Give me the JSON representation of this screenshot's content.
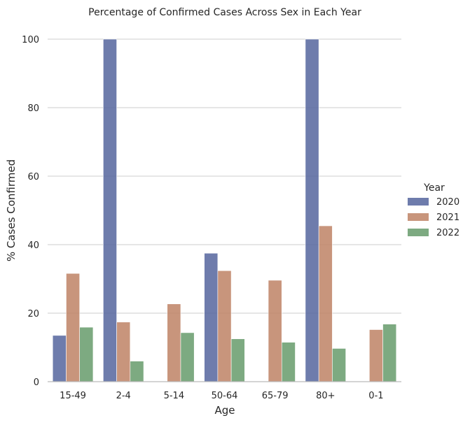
{
  "chart_data": {
    "type": "bar",
    "title": "Percentage of Confirmed Cases Across Sex in Each Year",
    "xlabel": "Age",
    "ylabel": "% Cases Confirmed",
    "categories": [
      "15-49",
      "2-4",
      "5-14",
      "50-64",
      "65-79",
      "80+",
      "0-1"
    ],
    "series": [
      {
        "name": "2020",
        "color": "#5a6aa0",
        "values": [
          13.5,
          100,
          null,
          37.5,
          null,
          100,
          null
        ]
      },
      {
        "name": "2021",
        "color": "#c0866a",
        "values": [
          31.6,
          17.4,
          22.7,
          32.4,
          29.6,
          45.5,
          15.2
        ]
      },
      {
        "name": "2022",
        "color": "#6b9e70",
        "values": [
          15.9,
          6,
          14.3,
          12.5,
          11.5,
          9.7,
          16.8
        ]
      }
    ],
    "ylim": [
      0,
      100
    ],
    "yticks": [
      0,
      20,
      40,
      60,
      80,
      100
    ],
    "grid": true,
    "legend": {
      "title": "Year",
      "placement": "right"
    }
  }
}
